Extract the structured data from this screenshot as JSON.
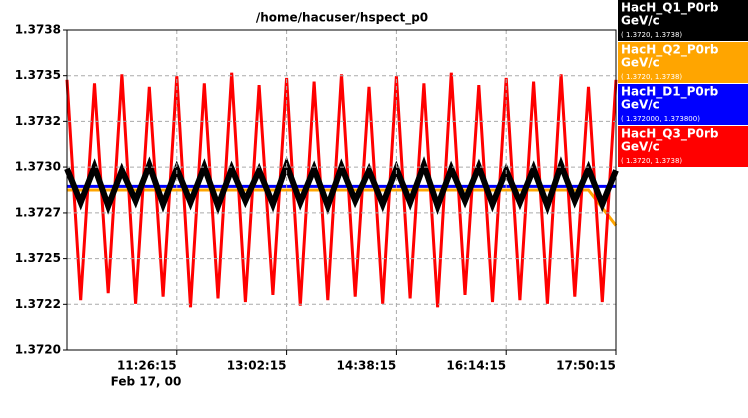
{
  "chart_data": {
    "type": "line",
    "title": "/home/hacuser/hspect_p0",
    "date_label": "Feb 17, 00",
    "x": [
      35415,
      36135,
      36855,
      37575,
      38295,
      39015,
      39735,
      40455,
      41175,
      41895,
      42615,
      43335,
      44055,
      44775,
      45495,
      46215,
      46935,
      47655,
      48375,
      49095,
      49815,
      50535,
      51255,
      51975,
      52695,
      53415,
      54135,
      54855,
      55575,
      56295,
      57015,
      57735,
      58455,
      59175,
      59895,
      60615,
      61335,
      62055,
      62775,
      63495,
      64215
    ],
    "xlim": [
      35415,
      64215
    ],
    "xticks": [
      {
        "value": 41175,
        "label": "11:26:15"
      },
      {
        "value": 46935,
        "label": "13:02:15"
      },
      {
        "value": 52695,
        "label": "14:38:15"
      },
      {
        "value": 58455,
        "label": "16:14:15"
      },
      {
        "value": 64215,
        "label": "17:50:15"
      }
    ],
    "ylim": [
      1.372,
      1.3738
    ],
    "yticks": [
      {
        "value": 1.372,
        "label": "1.3720"
      },
      {
        "value": 1.372257,
        "label": "1.3722"
      },
      {
        "value": 1.372514,
        "label": "1.3725"
      },
      {
        "value": 1.372771,
        "label": "1.3727"
      },
      {
        "value": 1.373029,
        "label": "1.3730"
      },
      {
        "value": 1.373286,
        "label": "1.3732"
      },
      {
        "value": 1.373543,
        "label": "1.3735"
      },
      {
        "value": 1.3738,
        "label": "1.3738"
      }
    ],
    "grid": true,
    "series": [
      {
        "name": "HacH_Q1_P0rb",
        "unit": "GeV/c",
        "range_label": "( 1.3720, 1.3738)",
        "color": "#000000",
        "text_color": "#ffffff",
        "values": [
          1.37302,
          1.37283,
          1.37303,
          1.37281,
          1.37301,
          1.37284,
          1.37304,
          1.37282,
          1.37302,
          1.37283,
          1.37303,
          1.37281,
          1.37302,
          1.37284,
          1.37301,
          1.37282,
          1.37304,
          1.37283,
          1.37302,
          1.37281,
          1.37303,
          1.37284,
          1.37301,
          1.37282,
          1.37302,
          1.37283,
          1.37304,
          1.37281,
          1.37302,
          1.37284,
          1.37303,
          1.37282,
          1.37301,
          1.37283,
          1.37302,
          1.37281,
          1.37304,
          1.37284,
          1.37302,
          1.37282,
          1.37301
        ]
      },
      {
        "name": "HacH_Q2_P0rb",
        "unit": "GeV/c",
        "range_label": "( 1.3720, 1.3738)",
        "color": "#ffa500",
        "text_color": "#ffffff",
        "values": [
          1.3729,
          1.3729,
          1.3729,
          1.3729,
          1.3729,
          1.3729,
          1.3729,
          1.3729,
          1.3729,
          1.3729,
          1.3729,
          1.3729,
          1.3729,
          1.3729,
          1.3729,
          1.3729,
          1.3729,
          1.3729,
          1.3729,
          1.3729,
          1.3729,
          1.3729,
          1.3729,
          1.3729,
          1.3729,
          1.3729,
          1.3729,
          1.3729,
          1.3729,
          1.3729,
          1.3729,
          1.3729,
          1.3729,
          1.3729,
          1.3729,
          1.3729,
          1.3729,
          1.3729,
          1.3729,
          1.3728,
          1.3727
        ]
      },
      {
        "name": "HacH_D1_P0rb",
        "unit": "GeV/c",
        "range_label": "( 1.372000, 1.373800)",
        "color": "#0000ff",
        "text_color": "#ffffff",
        "values": [
          1.37292,
          1.37292,
          1.37292,
          1.37292,
          1.37292,
          1.37292,
          1.37292,
          1.37292,
          1.37292,
          1.37292,
          1.37292,
          1.37292,
          1.37292,
          1.37292,
          1.37292,
          1.37292,
          1.37292,
          1.37292,
          1.37292,
          1.37292,
          1.37292,
          1.37292,
          1.37292,
          1.37292,
          1.37292,
          1.37292,
          1.37292,
          1.37292,
          1.37292,
          1.37292,
          1.37292,
          1.37292,
          1.37292,
          1.37292,
          1.37292,
          1.37292,
          1.37292,
          1.37292,
          1.37292,
          1.37292,
          1.37292
        ]
      },
      {
        "name": "HacH_Q3_P0rb",
        "unit": "GeV/c",
        "range_label": "( 1.3720, 1.3738)",
        "color": "#ff0000",
        "text_color": "#ffffff",
        "values": [
          1.37352,
          1.37228,
          1.3735,
          1.37232,
          1.37355,
          1.37226,
          1.37348,
          1.3723,
          1.37354,
          1.37224,
          1.3735,
          1.37229,
          1.37356,
          1.37227,
          1.37349,
          1.37231,
          1.37353,
          1.37225,
          1.37351,
          1.37228,
          1.37355,
          1.3723,
          1.37348,
          1.37226,
          1.37354,
          1.37229,
          1.3735,
          1.37224,
          1.37356,
          1.37231,
          1.37349,
          1.37227,
          1.37353,
          1.37228,
          1.37351,
          1.37226,
          1.37355,
          1.3723,
          1.37348,
          1.37227,
          1.37352
        ]
      }
    ]
  }
}
